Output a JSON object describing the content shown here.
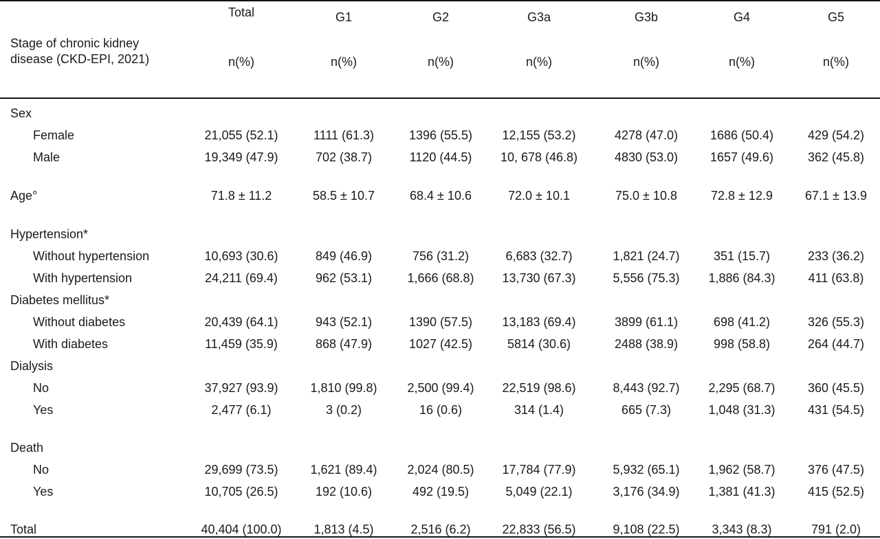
{
  "table": {
    "stub_header": [
      "Stage of chronic kidney",
      "disease (CKD-EPI, 2021)"
    ],
    "columns": [
      {
        "name": "Total",
        "unit": "n(%)"
      },
      {
        "name": "G1",
        "unit": "n(%)"
      },
      {
        "name": "G2",
        "unit": "n(%)"
      },
      {
        "name": "G3a",
        "unit": "n(%)"
      },
      {
        "name": "G3b",
        "unit": "n(%)"
      },
      {
        "name": "G4",
        "unit": "n(%)"
      },
      {
        "name": "G5",
        "unit": "n(%)"
      }
    ],
    "rows": [
      {
        "label": "Sex",
        "indent": false,
        "values": []
      },
      {
        "label": "Female",
        "indent": true,
        "values": [
          "21,055 (52.1)",
          "1111 (61.3)",
          "1396 (55.5)",
          "12,155 (53.2)",
          "4278 (47.0)",
          "1686 (50.4)",
          "429 (54.2)"
        ]
      },
      {
        "label": "Male",
        "indent": true,
        "values": [
          "19,349 (47.9)",
          "702 (38.7)",
          "1120 (44.5)",
          "10, 678 (46.8)",
          "4830 (53.0)",
          "1657 (49.6)",
          "362 (45.8)"
        ]
      },
      {
        "label": "Age°",
        "indent": false,
        "values": [
          "71.8 ± 11.2",
          "58.5 ± 10.7",
          "68.4  ± 10.6",
          "72.0  ± 10.1",
          "75.0 ±  10.8",
          "72.8 ±  12.9",
          "67.1 ± 13.9"
        ]
      },
      {
        "label": "Hypertension*",
        "indent": false,
        "values": []
      },
      {
        "label": "Without hypertension",
        "indent": true,
        "values": [
          "10,693 (30.6)",
          "849 (46.9)",
          "756 (31.2)",
          "6,683 (32.7)",
          "1,821 (24.7)",
          "351 (15.7)",
          "233 (36.2)"
        ]
      },
      {
        "label": "With hypertension",
        "indent": true,
        "values": [
          "24,211 (69.4)",
          "962 (53.1)",
          "1,666 (68.8)",
          "13,730 (67.3)",
          "5,556 (75.3)",
          "1,886 (84.3)",
          "411 (63.8)"
        ]
      },
      {
        "label": "Diabetes mellitus*",
        "indent": false,
        "values": []
      },
      {
        "label": "Without diabetes",
        "indent": true,
        "values": [
          "20,439 (64.1)",
          "943 (52.1)",
          "1390 (57.5)",
          "13,183 (69.4)",
          "3899 (61.1)",
          "698 (41.2)",
          "326 (55.3)"
        ]
      },
      {
        "label": "With diabetes",
        "indent": true,
        "values": [
          "11,459 (35.9)",
          "868 (47.9)",
          "1027 (42.5)",
          "5814 (30.6)",
          "2488 (38.9)",
          "998 (58.8)",
          "264 (44.7)"
        ]
      },
      {
        "label": "Dialysis",
        "indent": false,
        "values": []
      },
      {
        "label": "No",
        "indent": true,
        "values": [
          "37,927 (93.9)",
          "1,810 (99.8)",
          "2,500 (99.4)",
          "22,519 (98.6)",
          "8,443 (92.7)",
          "2,295 (68.7)",
          "360 (45.5)"
        ]
      },
      {
        "label": "Yes",
        "indent": true,
        "values": [
          "2,477 (6.1)",
          "3 (0.2)",
          "16 (0.6)",
          "314 (1.4)",
          "665 (7.3)",
          "1,048 (31.3)",
          "431 (54.5)"
        ]
      },
      {
        "label": "Death",
        "indent": false,
        "values": []
      },
      {
        "label": "No",
        "indent": true,
        "values": [
          "29,699 (73.5)",
          "1,621 (89.4)",
          "2,024 (80.5)",
          "17,784 (77.9)",
          "5,932 (65.1)",
          "1,962 (58.7)",
          "376 (47.5)"
        ]
      },
      {
        "label": "Yes",
        "indent": true,
        "values": [
          "10,705 (26.5)",
          "192 (10.6)",
          "492 (19.5)",
          "5,049 (22.1)",
          "3,176 (34.9)",
          "1,381 (41.3)",
          "415 (52.5)"
        ]
      },
      {
        "label": "Total",
        "indent": false,
        "values": [
          "40,404 (100.0)",
          "1,813 (4.5)",
          "2,516 (6.2)",
          "22,833 (56.5)",
          "9,108 (22.5)",
          "3,343 (8.3)",
          "791 (2.0)"
        ]
      }
    ]
  }
}
